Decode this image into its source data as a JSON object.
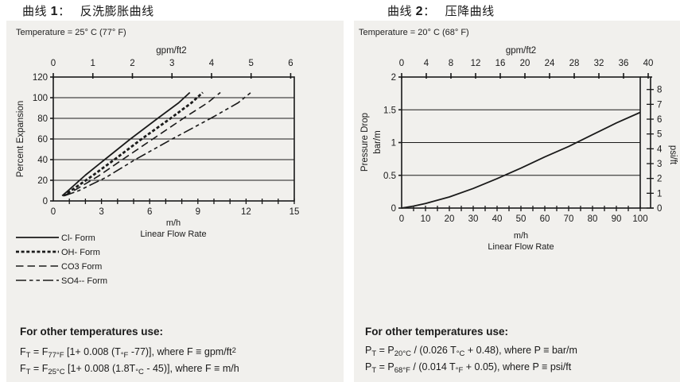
{
  "colors": {
    "ink": "#1a1a1a",
    "grid": "#3c3c3c",
    "panel_bg": "#f1f0ed",
    "page_bg": "#ffffff"
  },
  "left": {
    "title": {
      "pre": "曲线 ",
      "num": "1",
      "post": "：",
      "name": "反洗膨胀曲线"
    },
    "temperature": "Temperature = 25° C (77° F)",
    "footer": {
      "heading": "For other temperatures use:",
      "formulas": [
        [
          [
            "t",
            "F"
          ],
          [
            "sub",
            "T"
          ],
          [
            "t",
            " = F"
          ],
          [
            "sub",
            "77°F"
          ],
          [
            "t",
            " [1+ 0.008 (T"
          ],
          [
            "sub",
            "°F"
          ],
          [
            "t",
            " -77)], where F ≡ gpm/ft"
          ],
          [
            "sup",
            "2"
          ]
        ],
        [
          [
            "t",
            "F"
          ],
          [
            "sub",
            "T"
          ],
          [
            "t",
            " = F"
          ],
          [
            "sub",
            "25°C"
          ],
          [
            "t",
            " [1+ 0.008 (1.8T"
          ],
          [
            "sub",
            "°C"
          ],
          [
            "t",
            " - 45)], where F ≡ m/h"
          ]
        ]
      ]
    }
  },
  "right": {
    "title": {
      "pre": "曲线 ",
      "num": "2",
      "post": "：",
      "name": "压降曲线"
    },
    "temperature": "Temperature = 20° C (68° F)",
    "footer": {
      "heading": "For other temperatures use:",
      "formulas": [
        [
          [
            "t",
            "P"
          ],
          [
            "sub",
            "T"
          ],
          [
            "t",
            " = P"
          ],
          [
            "sub",
            "20°C"
          ],
          [
            "t",
            " / (0.026 T"
          ],
          [
            "sub",
            "°C"
          ],
          [
            "t",
            " + 0.48), where P ≡ bar/m"
          ]
        ],
        [
          [
            "t",
            "P"
          ],
          [
            "sub",
            "T"
          ],
          [
            "t",
            " = P"
          ],
          [
            "sub",
            "68°F"
          ],
          [
            "t",
            " / (0.014 T"
          ],
          [
            "sub",
            "°F"
          ],
          [
            "t",
            " + 0.05), where P ≡ psi/ft"
          ]
        ]
      ]
    }
  },
  "chart_data": [
    {
      "type": "line",
      "title": "曲线 1：反洗膨胀曲线",
      "subtitle": "Temperature = 25° C (77° F)",
      "xlabel": "m/h",
      "xlabel2": "Linear Flow Rate",
      "x2label": "gpm/ft2",
      "ylabel": "Percent Expansion",
      "xlim": [
        0,
        15
      ],
      "x2lim": [
        0,
        6
      ],
      "ylim": [
        0,
        120
      ],
      "x_ticks": [
        0,
        3,
        6,
        9,
        12,
        15
      ],
      "x_minor_step": 1,
      "x2_ticks": [
        0,
        1,
        2,
        3,
        4,
        5,
        6
      ],
      "y_ticks": [
        0,
        20,
        40,
        60,
        80,
        100,
        120
      ],
      "grid_y": [
        20,
        40,
        60,
        80,
        100
      ],
      "legend_position": "bottom-left",
      "series": [
        {
          "name": "Cl- Form",
          "dash": "solid",
          "points": [
            [
              0.55,
              5
            ],
            [
              1.0,
              11
            ],
            [
              2.0,
              25
            ],
            [
              3.2,
              40
            ],
            [
              4.8,
              60
            ],
            [
              6.5,
              80
            ],
            [
              7.8,
              95
            ],
            [
              8.5,
              105
            ]
          ]
        },
        {
          "name": "OH- Form",
          "dash": "bold-dotted",
          "points": [
            [
              0.6,
              5
            ],
            [
              1.2,
              11
            ],
            [
              2.4,
              24
            ],
            [
              3.8,
              40
            ],
            [
              5.5,
              60
            ],
            [
              7.3,
              80
            ],
            [
              8.6,
              95
            ],
            [
              9.3,
              105
            ]
          ]
        },
        {
          "name": "CO3 Form",
          "dash": "long-dash",
          "points": [
            [
              0.65,
              5
            ],
            [
              1.4,
              11
            ],
            [
              2.8,
              24
            ],
            [
              4.3,
              40
            ],
            [
              6.2,
              60
            ],
            [
              8.1,
              80
            ],
            [
              9.6,
              95
            ],
            [
              10.4,
              105
            ]
          ]
        },
        {
          "name": "SO4-- Form",
          "dash": "dash-dot-dot",
          "points": [
            [
              0.7,
              5
            ],
            [
              1.6,
              10
            ],
            [
              3.3,
              23
            ],
            [
              5.1,
              40
            ],
            [
              7.4,
              60
            ],
            [
              9.8,
              80
            ],
            [
              11.5,
              95
            ],
            [
              12.3,
              105
            ]
          ]
        }
      ]
    },
    {
      "type": "line",
      "title": "曲线 2：压降曲线",
      "subtitle": "Temperature = 20° C (68° F)",
      "xlabel": "m/h",
      "xlabel2": "Linear Flow Rate",
      "x2label": "gpm/ft2",
      "ylabel": "Pressure Drop",
      "ylabel2": "bar/m",
      "y2label": "psi/ft",
      "xlim": [
        0,
        100
      ],
      "x2lim": [
        0,
        40
      ],
      "ylim": [
        0,
        2
      ],
      "y2lim": [
        0,
        8
      ],
      "x_ticks": [
        0,
        10,
        20,
        30,
        40,
        50,
        60,
        70,
        80,
        90,
        100
      ],
      "x_minor_step": 5,
      "x2_ticks": [
        0,
        4,
        8,
        12,
        16,
        20,
        24,
        28,
        32,
        36,
        40
      ],
      "y_ticks": [
        "0",
        "0.5",
        "1",
        "1.5",
        "2"
      ],
      "y2_ticks": [
        0,
        1,
        2,
        3,
        4,
        5,
        6,
        7,
        8
      ],
      "grid_y": [
        0.5,
        1,
        1.5
      ],
      "series": [
        {
          "name": "Pressure Drop",
          "dash": "solid",
          "points": [
            [
              0,
              0
            ],
            [
              5,
              0.03
            ],
            [
              10,
              0.07
            ],
            [
              20,
              0.17
            ],
            [
              30,
              0.3
            ],
            [
              40,
              0.45
            ],
            [
              50,
              0.61
            ],
            [
              60,
              0.78
            ],
            [
              70,
              0.94
            ],
            [
              80,
              1.12
            ],
            [
              90,
              1.3
            ],
            [
              100,
              1.46
            ]
          ]
        }
      ]
    }
  ]
}
